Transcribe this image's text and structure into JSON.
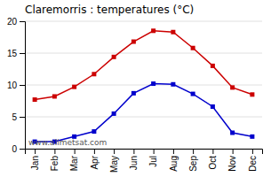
{
  "chart_data": {
    "type": "line",
    "title": "Claremorris : temperatures (°C)",
    "categories": [
      "Jan",
      "Feb",
      "Mar",
      "Apr",
      "May",
      "Jun",
      "Jul",
      "Aug",
      "Sep",
      "Oct",
      "Nov",
      "Dec"
    ],
    "series": [
      {
        "color": "#cc0000",
        "marker": "square",
        "values": [
          7.7,
          8.2,
          9.7,
          11.7,
          14.4,
          16.8,
          18.5,
          18.3,
          15.8,
          13.0,
          9.6,
          8.5
        ]
      },
      {
        "color": "#0000cc",
        "marker": "square",
        "values": [
          1.1,
          1.1,
          1.9,
          2.7,
          5.5,
          8.7,
          10.2,
          10.1,
          8.6,
          6.6,
          2.5,
          1.9
        ]
      }
    ],
    "ylim": [
      0,
      20
    ],
    "yticks": [
      0,
      5,
      10,
      15,
      20
    ],
    "grid": true,
    "annotations": [
      "www.allmetsat.com"
    ]
  }
}
